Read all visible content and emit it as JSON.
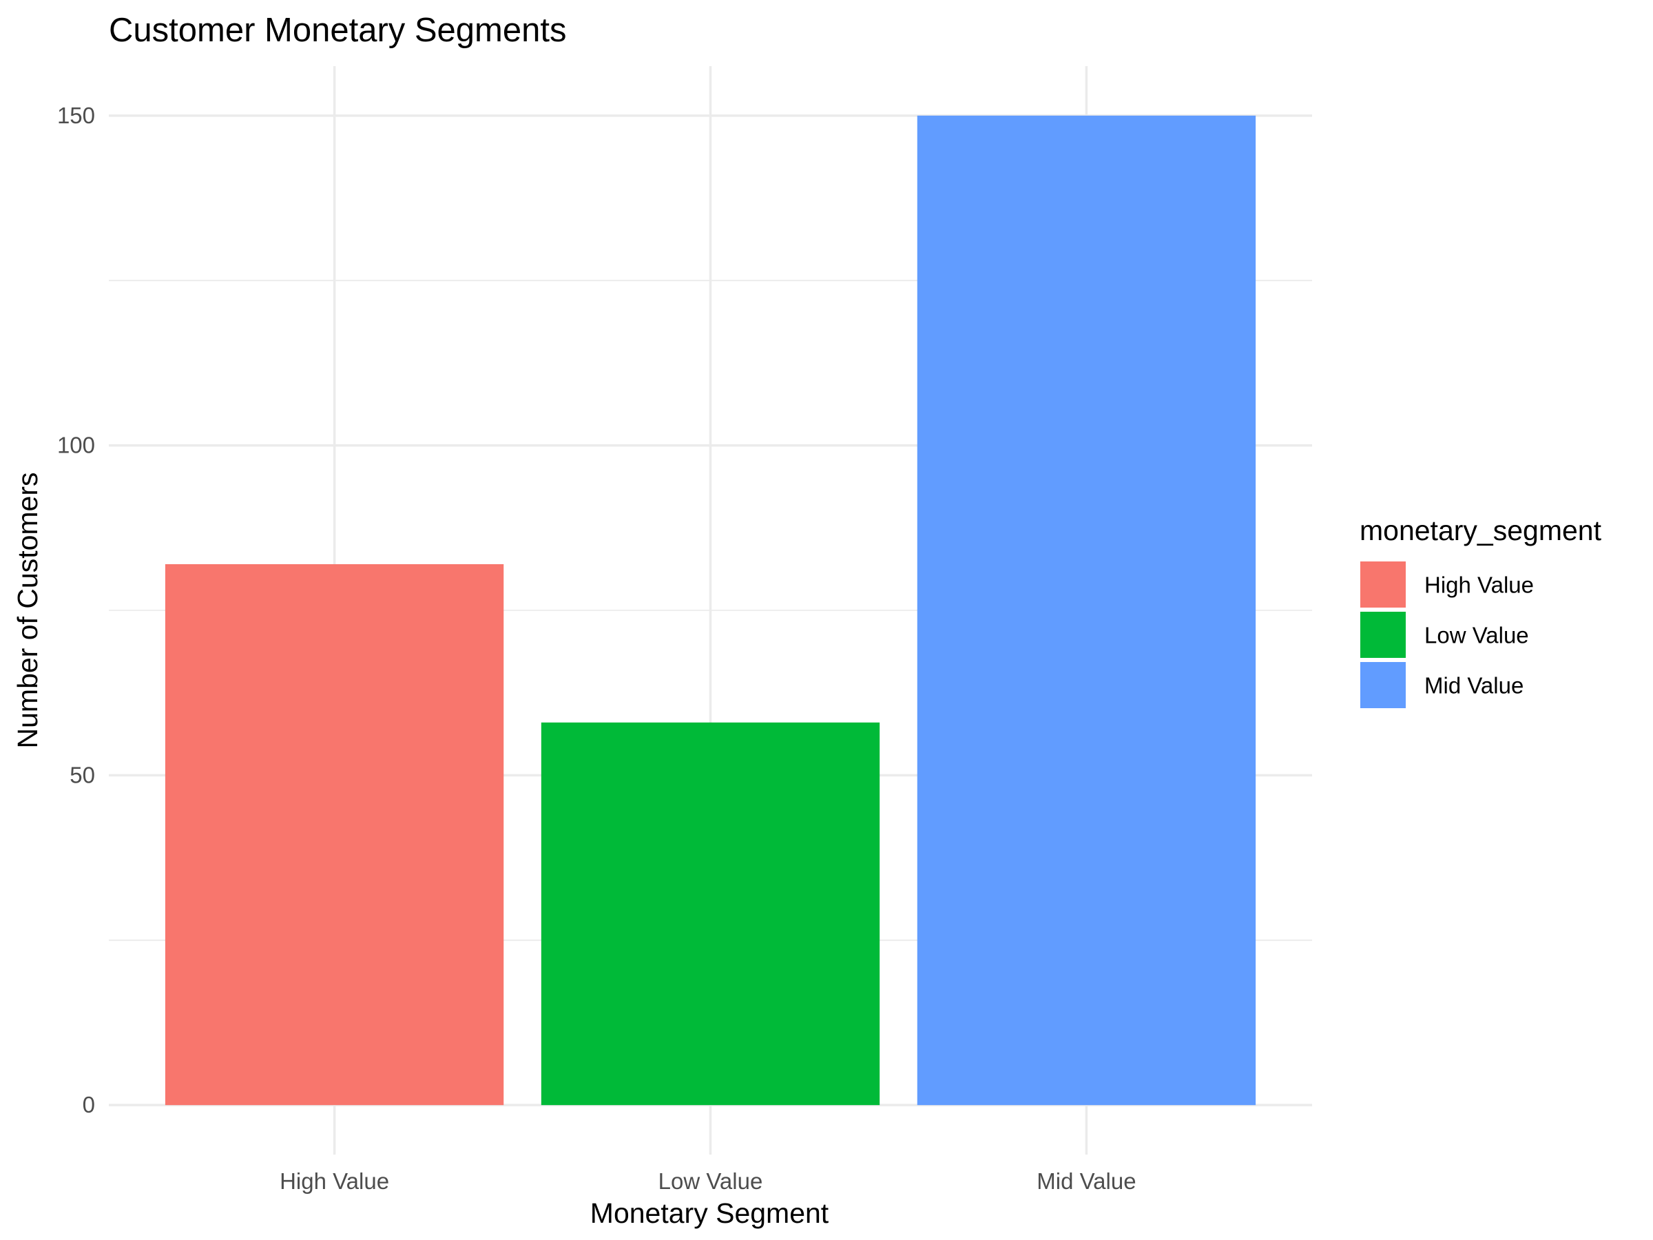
{
  "chart_data": {
    "type": "bar",
    "title": "Customer Monetary Segments",
    "xlabel": "Monetary Segment",
    "ylabel": "Number of Customers",
    "categories": [
      "High Value",
      "Low Value",
      "Mid Value"
    ],
    "values": [
      82,
      58,
      150
    ],
    "colors": [
      "#F8766D",
      "#00BA38",
      "#619CFF"
    ],
    "ylim": [
      -7.5,
      157.5
    ],
    "yticks": [
      0,
      50,
      100,
      150
    ],
    "yticks_labels": [
      "0",
      "50",
      "100",
      "150"
    ],
    "yminor": [
      25,
      75,
      125
    ],
    "grid": true,
    "legend": {
      "title": "monetary_segment",
      "position": "right",
      "entries": [
        {
          "label": "High Value",
          "color": "#F8766D"
        },
        {
          "label": "Low Value",
          "color": "#00BA38"
        },
        {
          "label": "Mid Value",
          "color": "#619CFF"
        }
      ]
    }
  }
}
